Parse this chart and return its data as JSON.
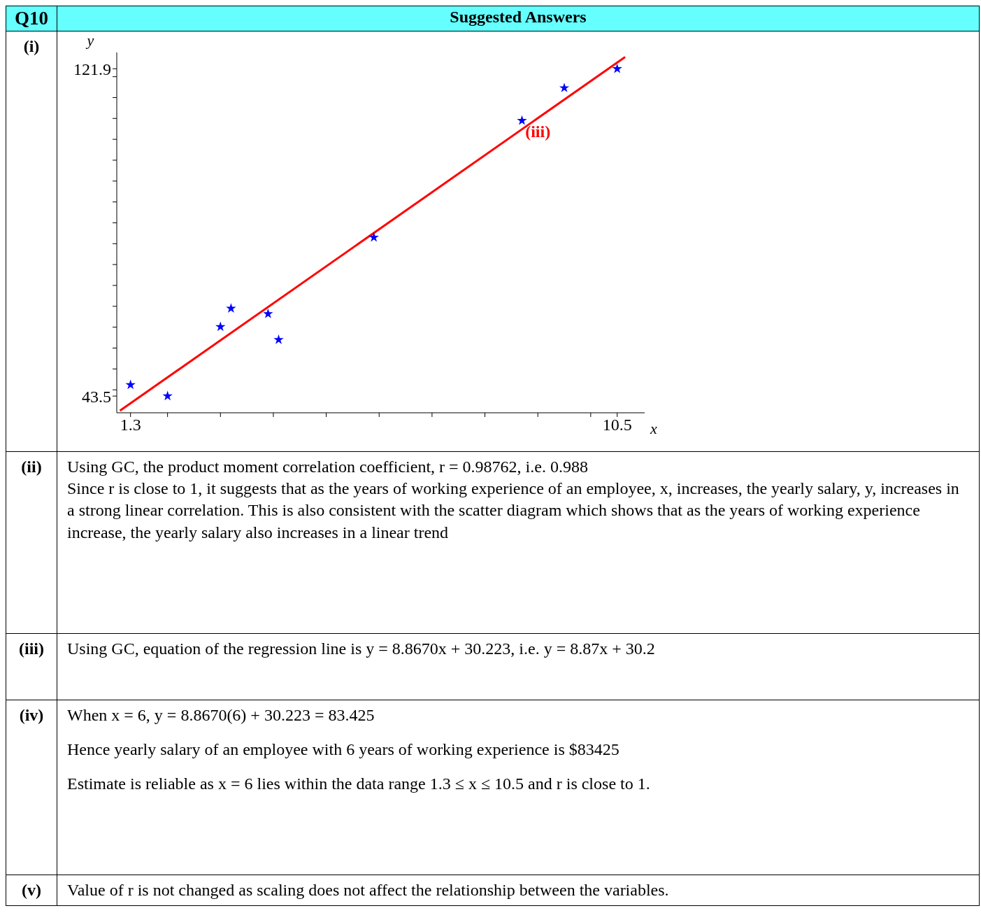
{
  "chart_data": {
    "type": "scatter",
    "title": "Suggested Answers",
    "xlabel": "x",
    "ylabel": "y",
    "xlim": [
      1.04,
      11.02
    ],
    "ylim": [
      39.5,
      125.8
    ],
    "xticks": [
      {
        "value": 1.3,
        "label": "1.3"
      },
      {
        "value": 2,
        "label": null
      },
      {
        "value": 3,
        "label": null
      },
      {
        "value": 4,
        "label": null
      },
      {
        "value": 5,
        "label": null
      },
      {
        "value": 6,
        "label": null
      },
      {
        "value": 7,
        "label": null
      },
      {
        "value": 8,
        "label": null
      },
      {
        "value": 9,
        "label": null
      },
      {
        "value": 10,
        "label": null
      },
      {
        "value": 10.5,
        "label": "10.5"
      }
    ],
    "yticks": [
      {
        "value": 43.5,
        "label": "43.5"
      },
      {
        "value": 45,
        "label": null
      },
      {
        "value": 50,
        "label": null
      },
      {
        "value": 55,
        "label": null
      },
      {
        "value": 60,
        "label": null
      },
      {
        "value": 65,
        "label": null
      },
      {
        "value": 70,
        "label": null
      },
      {
        "value": 75,
        "label": null
      },
      {
        "value": 80,
        "label": null
      },
      {
        "value": 85,
        "label": null
      },
      {
        "value": 90,
        "label": null
      },
      {
        "value": 95,
        "label": null
      },
      {
        "value": 100,
        "label": null
      },
      {
        "value": 105,
        "label": null
      },
      {
        "value": 110,
        "label": null
      },
      {
        "value": 115,
        "label": null
      },
      {
        "value": 120,
        "label": null
      },
      {
        "value": 121.9,
        "label": "121.9"
      }
    ],
    "grid": false,
    "legend": false,
    "marker": "star",
    "series": [
      {
        "color": "#0000ff",
        "x": [
          1.3,
          2.0,
          3.0,
          3.2,
          3.9,
          4.1,
          5.9,
          8.7,
          9.5,
          10.5
        ],
        "values": [
          46.2,
          43.5,
          60.1,
          64.5,
          63.2,
          57.0,
          81.5,
          109.5,
          117.3,
          121.9
        ]
      },
      {
        "type": "line",
        "marker": "none",
        "color": "#ff0000",
        "x": [
          1.1,
          10.65
        ],
        "values": [
          40.0,
          124.7
        ]
      }
    ],
    "annotations": [
      "Q10",
      "(i)",
      {
        "text": "(iii)",
        "x": 9.0,
        "y": 110.0
      },
      "(ii)",
      "Using GC, the product moment correlation coefficient, r = 0.98762, i.e. 0.988",
      "Since r is close to 1, it suggests that as the years of working experience of an employee, x, increases, the yearly salary, y, increases in a strong linear correlation. This is also consistent with the scatter diagram which shows that as the years of working experience increase, the yearly salary also increases in a linear trend",
      "(iii)",
      "Using GC, equation of the regression line is  y = 8.8670x + 30.223, i.e.  y = 8.87x + 30.2",
      "(iv)",
      "When  x = 6,  y = 8.8670(6) + 30.223 = 83.425",
      "Hence yearly salary of an employee with 6 years of working experience is $83425",
      "Estimate is reliable as  x = 6  lies within the data range  1.3 ≤ x ≤ 10.5  and r is close to 1.",
      "(v)",
      "Value of r is not changed as scaling does not affect the relationship between the variables."
    ]
  }
}
